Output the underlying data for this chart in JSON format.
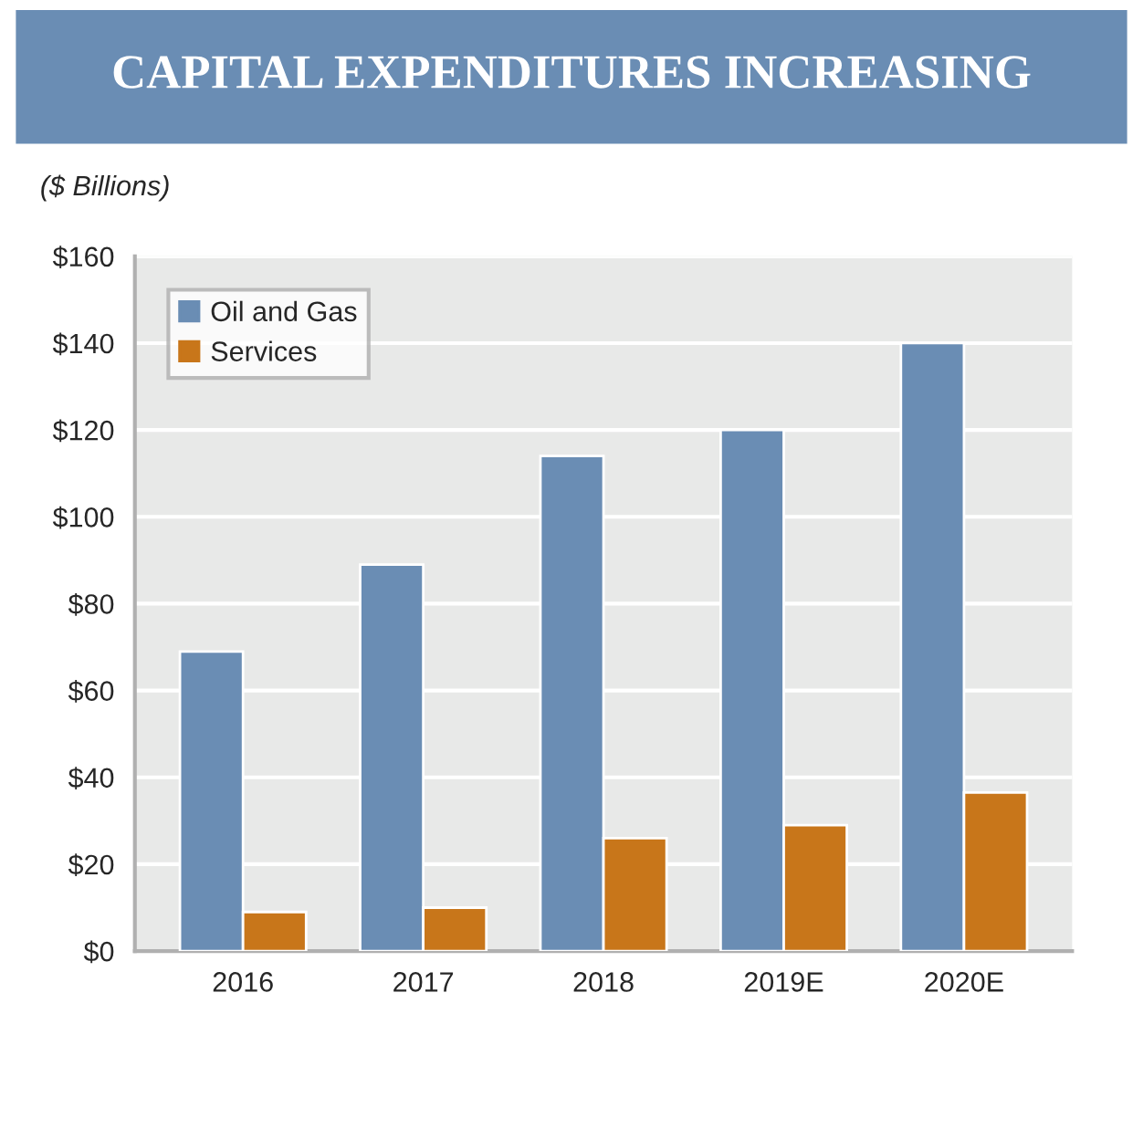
{
  "chart_data": {
    "type": "bar",
    "title": "CAPITAL EXPENDITURES INCREASING",
    "ylabel": "($ Billions)",
    "categories": [
      "2016",
      "2017",
      "2018",
      "2019E",
      "2020E"
    ],
    "series": [
      {
        "name": "Oil and Gas",
        "color": "#6a8db4",
        "values": [
          69,
          89,
          114,
          120,
          140
        ]
      },
      {
        "name": "Services",
        "color": "#c8761a",
        "values": [
          9,
          10,
          26,
          29,
          36.5
        ]
      }
    ],
    "ylim": [
      0,
      160
    ],
    "yticks": [
      {
        "value": 0,
        "label": "$0"
      },
      {
        "value": 20,
        "label": "$20"
      },
      {
        "value": 40,
        "label": "$40"
      },
      {
        "value": 60,
        "label": "$60"
      },
      {
        "value": 80,
        "label": "$80"
      },
      {
        "value": 100,
        "label": "$100"
      },
      {
        "value": 120,
        "label": "$120"
      },
      {
        "value": 140,
        "label": "$140"
      },
      {
        "value": 160,
        "label": "$160"
      }
    ],
    "grid": "y",
    "legend": "top left"
  }
}
